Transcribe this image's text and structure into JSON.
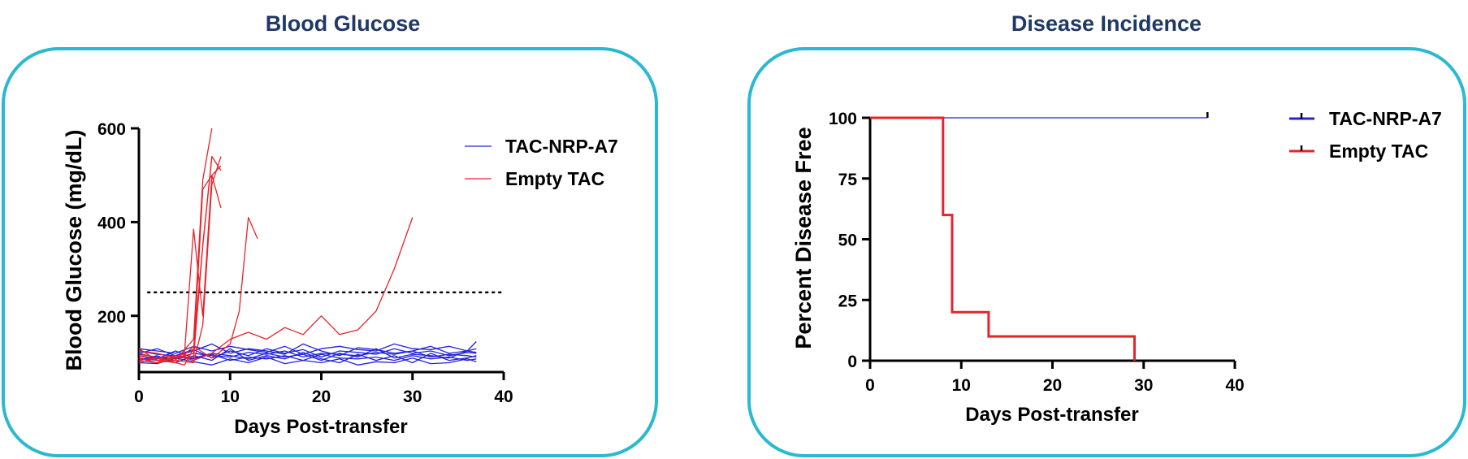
{
  "colors": {
    "frame": "#2bb9d0",
    "title": "#1f3864",
    "blue": "#2323d8",
    "red": "#e8232a"
  },
  "chart_data": [
    {
      "type": "line",
      "title": "Blood Glucose",
      "xlabel": "Days Post-transfer",
      "ylabel": "Blood Glucose (mg/dL)",
      "xlim": [
        0,
        40
      ],
      "ylim": [
        80,
        600
      ],
      "xticks": [
        0,
        10,
        20,
        30,
        40
      ],
      "yticks": [
        200,
        400,
        600
      ],
      "threshold": 250,
      "legend": [
        {
          "label": "TAC-NRP-A7",
          "color": "#2323d8"
        },
        {
          "label": "Empty TAC",
          "color": "#e8232a"
        }
      ],
      "series": [
        {
          "name": "TAC-NRP-A7",
          "color": "#2323d8",
          "x": [
            0,
            2,
            4,
            6,
            8,
            10,
            12,
            14,
            16,
            18,
            20,
            22,
            24,
            26,
            28,
            30,
            32,
            34,
            36,
            37
          ],
          "y": [
            118,
            112,
            108,
            120,
            115,
            112,
            122,
            118,
            125,
            112,
            120,
            118,
            115,
            122,
            118,
            125,
            112,
            118,
            115,
            112
          ]
        },
        {
          "name": "TAC-NRP-A7",
          "color": "#2323d8",
          "x": [
            0,
            2,
            4,
            6,
            8,
            10,
            12,
            14,
            16,
            18,
            20,
            22,
            24,
            26,
            28,
            30,
            32,
            34,
            36,
            37
          ],
          "y": [
            125,
            118,
            115,
            128,
            110,
            125,
            115,
            130,
            120,
            128,
            112,
            125,
            122,
            118,
            130,
            120,
            125,
            115,
            122,
            120
          ]
        },
        {
          "name": "TAC-NRP-A7",
          "color": "#2323d8",
          "x": [
            0,
            2,
            4,
            6,
            8,
            10,
            12,
            14,
            16,
            18,
            20,
            22,
            24,
            26,
            28,
            30,
            32,
            34,
            36,
            37
          ],
          "y": [
            110,
            105,
            112,
            108,
            118,
            105,
            112,
            108,
            115,
            105,
            118,
            110,
            108,
            112,
            105,
            115,
            108,
            112,
            105,
            108
          ]
        },
        {
          "name": "TAC-NRP-A7",
          "color": "#2323d8",
          "x": [
            0,
            2,
            4,
            6,
            8,
            10,
            12,
            14,
            16,
            18,
            20,
            22,
            24,
            26,
            28,
            30,
            32,
            34,
            36,
            37
          ],
          "y": [
            130,
            125,
            120,
            135,
            125,
            135,
            128,
            122,
            135,
            118,
            130,
            135,
            128,
            125,
            140,
            130,
            128,
            135,
            125,
            130
          ]
        },
        {
          "name": "TAC-NRP-A7",
          "color": "#2323d8",
          "x": [
            0,
            2,
            4,
            6,
            8,
            10,
            12,
            14,
            16,
            18,
            20,
            22,
            24,
            26,
            28,
            30,
            32,
            34,
            36,
            37
          ],
          "y": [
            100,
            98,
            110,
            102,
            95,
            108,
            100,
            112,
            98,
            105,
            100,
            108,
            95,
            102,
            100,
            110,
            98,
            100,
            108,
            102
          ]
        },
        {
          "name": "TAC-NRP-A7",
          "color": "#2323d8",
          "x": [
            0,
            2,
            4,
            6,
            8,
            10,
            12,
            14,
            16,
            18,
            20,
            22,
            24,
            26,
            28,
            30,
            32,
            34,
            36,
            37
          ],
          "y": [
            120,
            130,
            115,
            125,
            140,
            120,
            130,
            125,
            118,
            140,
            125,
            115,
            132,
            128,
            120,
            125,
            135,
            120,
            125,
            122
          ]
        },
        {
          "name": "TAC-NRP-A7",
          "color": "#2323d8",
          "x": [
            0,
            2,
            4,
            6,
            8,
            10,
            12,
            14,
            16,
            18,
            20,
            22,
            24,
            26,
            28,
            30,
            32,
            34,
            36,
            37
          ],
          "y": [
            115,
            108,
            125,
            110,
            120,
            115,
            108,
            120,
            112,
            118,
            105,
            120,
            112,
            130,
            110,
            118,
            115,
            110,
            125,
            145
          ]
        },
        {
          "name": "TAC-NRP-A7",
          "color": "#2323d8",
          "x": [
            0,
            2,
            4,
            6,
            8,
            10,
            12,
            14,
            16,
            18,
            20,
            22,
            24,
            26,
            28,
            30,
            32,
            34,
            36,
            37
          ],
          "y": [
            105,
            115,
            100,
            115,
            105,
            130,
            105,
            115,
            108,
            122,
            108,
            100,
            118,
            105,
            115,
            100,
            120,
            105,
            110,
            115
          ]
        },
        {
          "name": "Empty TAC",
          "color": "#e8232a",
          "x": [
            0,
            2,
            4,
            5,
            6,
            7,
            8
          ],
          "y": [
            120,
            110,
            100,
            95,
            130,
            350,
            540
          ]
        },
        {
          "name": "Empty TAC",
          "color": "#e8232a",
          "x": [
            0,
            2,
            4,
            5,
            6,
            7,
            8,
            9
          ],
          "y": [
            115,
            105,
            110,
            120,
            385,
            200,
            500,
            520
          ]
        },
        {
          "name": "Empty TAC",
          "color": "#e8232a",
          "x": [
            0,
            2,
            4,
            6,
            7,
            8
          ],
          "y": [
            110,
            100,
            105,
            150,
            490,
            600
          ]
        },
        {
          "name": "Empty TAC",
          "color": "#e8232a",
          "x": [
            0,
            2,
            4,
            6,
            7,
            8,
            9
          ],
          "y": [
            125,
            120,
            110,
            120,
            470,
            500,
            430
          ]
        },
        {
          "name": "Empty TAC",
          "color": "#e8232a",
          "x": [
            0,
            2,
            4,
            6,
            7,
            8,
            9
          ],
          "y": [
            105,
            100,
            115,
            110,
            350,
            540,
            510
          ]
        },
        {
          "name": "Empty TAC",
          "color": "#e8232a",
          "x": [
            0,
            2,
            4,
            6,
            7,
            8,
            9
          ],
          "y": [
            100,
            110,
            105,
            100,
            180,
            480,
            540
          ]
        },
        {
          "name": "Empty TAC",
          "color": "#e8232a",
          "x": [
            0,
            2,
            4,
            6,
            8,
            10,
            11,
            12,
            13
          ],
          "y": [
            130,
            105,
            100,
            135,
            110,
            140,
            210,
            410,
            365
          ]
        },
        {
          "name": "Empty TAC",
          "color": "#e8232a",
          "x": [
            0,
            2,
            4,
            6,
            8,
            10,
            12,
            14,
            16,
            18,
            20,
            22,
            24,
            26,
            28,
            30
          ],
          "y": [
            120,
            110,
            115,
            105,
            120,
            150,
            165,
            150,
            175,
            160,
            200,
            160,
            170,
            210,
            300,
            410
          ]
        }
      ]
    },
    {
      "type": "survival",
      "title": "Disease Incidence",
      "xlabel": "Days Post-transfer",
      "ylabel": "Percent Disease Free",
      "xlim": [
        0,
        40
      ],
      "ylim": [
        0,
        100
      ],
      "xticks": [
        0,
        10,
        20,
        30,
        40
      ],
      "yticks": [
        0,
        25,
        50,
        75,
        100
      ],
      "legend": [
        {
          "label": "TAC-NRP-A7",
          "color": "#2323d8"
        },
        {
          "label": "Empty TAC",
          "color": "#e8232a"
        }
      ],
      "series": [
        {
          "name": "TAC-NRP-A7",
          "color": "#2323d8",
          "x": [
            0,
            37
          ],
          "y": [
            100,
            100
          ],
          "censor_at": 37
        },
        {
          "name": "Empty TAC",
          "color": "#e8232a",
          "x": [
            0,
            8,
            8,
            9,
            9,
            13,
            13,
            29,
            29
          ],
          "y": [
            100,
            100,
            60,
            60,
            20,
            20,
            10,
            10,
            0
          ]
        }
      ]
    }
  ]
}
